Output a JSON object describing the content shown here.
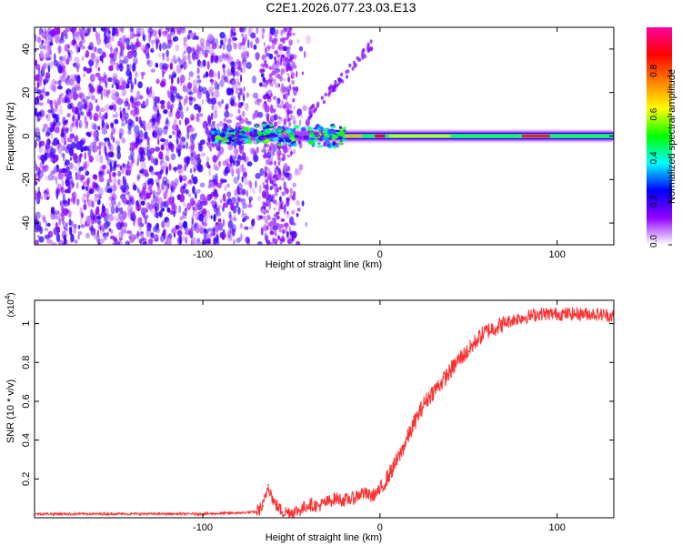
{
  "title": "C2E1.2026.077.23.03.E13",
  "chart_data": [
    {
      "type": "heatmap",
      "name": "spectrogram",
      "xlabel": "Height of straight line (km)",
      "ylabel": "Frequency (Hz)",
      "xlim": [
        -195,
        132
      ],
      "ylim": [
        -50,
        50
      ],
      "xticks": [
        -100,
        0,
        100
      ],
      "xticklabels": [
        "-100",
        "0",
        "100"
      ],
      "yticks": [
        -40,
        -20,
        0,
        20,
        40
      ],
      "yticklabels": [
        "-40",
        "-20",
        "0",
        "20",
        "40"
      ],
      "colorbar": {
        "label": "Normalized spectral amplitude",
        "range": [
          0,
          1
        ],
        "ticks": [
          0.0,
          0.2,
          0.4,
          0.6,
          0.8
        ],
        "ticklabels": [
          "0.0",
          "0.2",
          "0.4",
          "0.6",
          "0.8"
        ],
        "colors": [
          "#ffffff",
          "#9000ff",
          "#0000ff",
          "#00ffff",
          "#00ff00",
          "#ffff00",
          "#ff8000",
          "#ff0000",
          "#ff00a0"
        ]
      },
      "features": {
        "noise_region_x": [
          -195,
          -50
        ],
        "carrier_start_x": -95,
        "carrier_freq_hz": 0,
        "peak_band_x": [
          80,
          100
        ]
      }
    },
    {
      "type": "line",
      "name": "snr",
      "xlabel": "Height of straight line (km)",
      "ylabel": "SNR (10 * v/v)",
      "y_multiplier_label": "(x10",
      "y_multiplier_exp": "4",
      "y_multiplier_close": ")",
      "xlim": [
        -195,
        132
      ],
      "ylim": [
        0,
        1.12
      ],
      "xticks": [
        -100,
        0,
        100
      ],
      "xticklabels": [
        "-100",
        "0",
        "100"
      ],
      "yticks": [
        0.2,
        0.4,
        0.6,
        0.8,
        1.0
      ],
      "yticklabels": [
        "0.2",
        "0.4",
        "0.6",
        "0.8",
        "1"
      ],
      "series": [
        {
          "name": "SNR",
          "color": "#ff3030",
          "x": [
            -195,
            -150,
            -100,
            -80,
            -70,
            -66,
            -63,
            -60,
            -55,
            -50,
            -45,
            -40,
            -35,
            -30,
            -25,
            -20,
            -15,
            -10,
            -5,
            0,
            5,
            10,
            15,
            20,
            25,
            30,
            35,
            40,
            45,
            50,
            55,
            60,
            65,
            70,
            75,
            80,
            85,
            90,
            95,
            100,
            110,
            120,
            132
          ],
          "y": [
            0.02,
            0.02,
            0.02,
            0.025,
            0.03,
            0.06,
            0.17,
            0.08,
            0.03,
            0.03,
            0.04,
            0.07,
            0.06,
            0.08,
            0.1,
            0.09,
            0.1,
            0.13,
            0.11,
            0.14,
            0.22,
            0.3,
            0.4,
            0.5,
            0.59,
            0.65,
            0.7,
            0.76,
            0.82,
            0.86,
            0.92,
            0.96,
            0.98,
            1.0,
            1.02,
            1.03,
            1.04,
            1.05,
            1.05,
            1.05,
            1.05,
            1.05,
            1.04
          ]
        }
      ]
    }
  ]
}
